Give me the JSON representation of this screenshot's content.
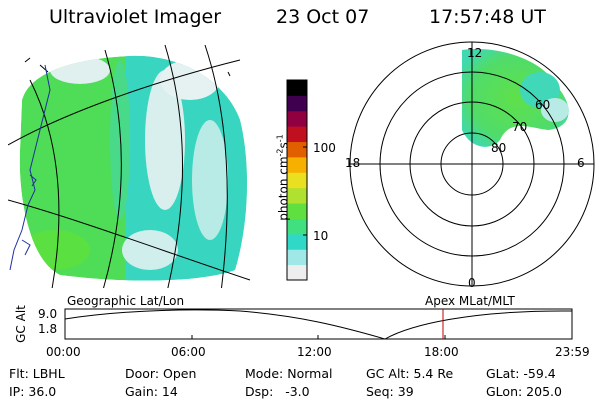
{
  "header": {
    "instrument": "Ultraviolet Imager",
    "date": "23 Oct 07",
    "time": "17:57:48 UT"
  },
  "colorbar": {
    "unit_label": "photon cm",
    "unit_exp1": "-2",
    "unit_mid": "s",
    "unit_exp2": "-1",
    "tick_100": "100",
    "tick_10": "10",
    "colors_bottom_to_top": [
      "#eeeeee",
      "#a0e8e8",
      "#30d8c8",
      "#40e080",
      "#60e040",
      "#b0e030",
      "#e8e020",
      "#f8b000",
      "#e06000",
      "#c01020",
      "#900040",
      "#400050",
      "#000000"
    ]
  },
  "polar_plot": {
    "mlt_labels": {
      "top": "12",
      "left": "18",
      "right": "6",
      "bottom": "0"
    },
    "mlat_labels": [
      "60",
      "70",
      "80"
    ]
  },
  "timeline": {
    "left_title": "Geographic Lat/Lon",
    "right_title": "Apex MLat/MLT",
    "y_axis_label": "GC Alt",
    "y_max": "9.0",
    "y_min": "1.8",
    "x_ticks": [
      "00:00",
      "06:00",
      "12:00",
      "18:00",
      "23:59"
    ]
  },
  "status": {
    "flt": "Flt: LBHL",
    "ip": "IP: 36.0",
    "door": "Door: Open",
    "gain": "Gain: 14",
    "mode": "Mode: Normal",
    "dsp": "Dsp:   -3.0",
    "gc_alt": "GC Alt: 5.4 Re",
    "seq": "Seq: 39",
    "glat": "GLat: -59.4",
    "glon": "GLon: 205.0"
  }
}
